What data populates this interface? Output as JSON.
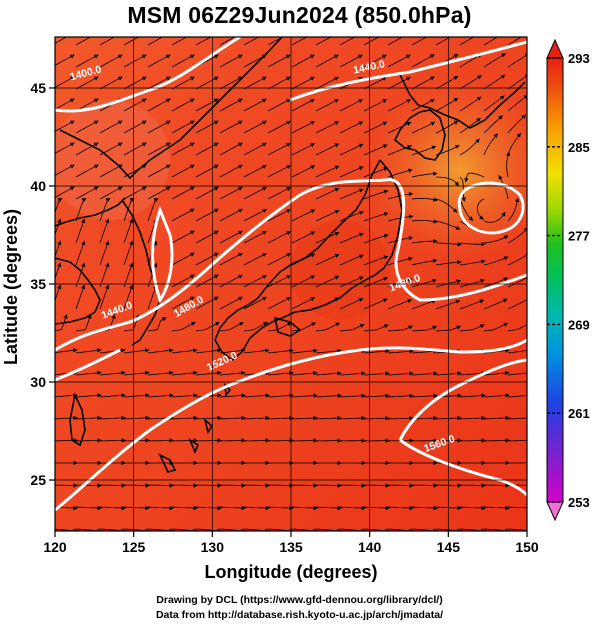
{
  "title": "MSM 06Z29Jun2024 (850.0hPa)",
  "x_axis": {
    "label": "Longitude (degrees)",
    "ticks": [
      "120",
      "125",
      "130",
      "135",
      "140",
      "145",
      "150"
    ],
    "range": [
      120,
      150
    ]
  },
  "y_axis": {
    "label": "Latitude  (degrees)",
    "ticks": [
      "25",
      "30",
      "35",
      "40",
      "45"
    ],
    "range": [
      22.4,
      47.6
    ]
  },
  "colorbar": {
    "ticks": [
      "253",
      "261",
      "269",
      "277",
      "285",
      "293"
    ],
    "range": [
      253,
      293
    ],
    "colors": [
      "#d400c8",
      "#8020d0",
      "#2040e0",
      "#00a0e0",
      "#00c080",
      "#10c020",
      "#a0d800",
      "#f0e000",
      "#f8a000",
      "#f05010",
      "#e82010"
    ]
  },
  "contour_labels": [
    "1400.0",
    "1440.0",
    "1440.0",
    "1480.0",
    "1520.0",
    "1560.0",
    "1480.0"
  ],
  "footer": {
    "line1": "Drawing by DCL (https://www.gfd-dennou.org/library/dcl/)",
    "line2": "Data from http://database.rish.kyoto-u.ac.jp/arch/jmadata/"
  }
}
